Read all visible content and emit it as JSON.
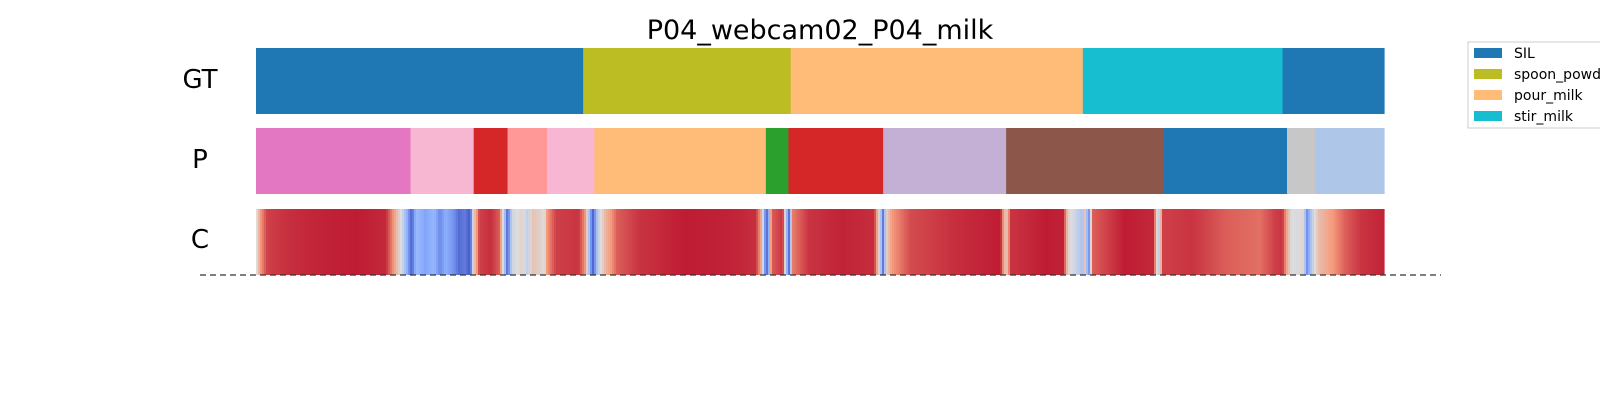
{
  "chart_data": {
    "type": "segmentation",
    "title": "P04_webcam02_P04_milk",
    "x_range": [
      0,
      1
    ],
    "rows": [
      {
        "label": "GT",
        "segments": [
          {
            "start": 0.0,
            "end": 0.29,
            "color": "#1f77b4",
            "class": "SIL"
          },
          {
            "start": 0.29,
            "end": 0.474,
            "color": "#bcbd22",
            "class": "spoon_powd"
          },
          {
            "start": 0.474,
            "end": 0.733,
            "color": "#ffbb78",
            "class": "pour_milk"
          },
          {
            "start": 0.733,
            "end": 0.91,
            "color": "#17becf",
            "class": "stir_milk"
          },
          {
            "start": 0.91,
            "end": 1.0,
            "color": "#1f77b4",
            "class": "SIL"
          }
        ]
      },
      {
        "label": "P",
        "segments": [
          {
            "start": 0.0,
            "end": 0.137,
            "color": "#e377c2"
          },
          {
            "start": 0.137,
            "end": 0.193,
            "color": "#f7b6d2"
          },
          {
            "start": 0.193,
            "end": 0.223,
            "color": "#d62728"
          },
          {
            "start": 0.223,
            "end": 0.258,
            "color": "#ff9896"
          },
          {
            "start": 0.258,
            "end": 0.3,
            "color": "#f7b6d2"
          },
          {
            "start": 0.3,
            "end": 0.452,
            "color": "#ffbb78"
          },
          {
            "start": 0.452,
            "end": 0.472,
            "color": "#2ca02c"
          },
          {
            "start": 0.472,
            "end": 0.556,
            "color": "#d62728"
          },
          {
            "start": 0.556,
            "end": 0.665,
            "color": "#c5b0d5"
          },
          {
            "start": 0.665,
            "end": 0.805,
            "color": "#8c564b"
          },
          {
            "start": 0.805,
            "end": 0.914,
            "color": "#1f77b4"
          },
          {
            "start": 0.914,
            "end": 0.939,
            "color": "#c7c7c7"
          },
          {
            "start": 0.939,
            "end": 1.0,
            "color": "#aec7e8"
          }
        ]
      },
      {
        "label": "C",
        "colormap": "coolwarm",
        "confidence_points": [
          [
            0.0,
            0.45
          ],
          [
            0.004,
            0.75
          ],
          [
            0.01,
            0.9
          ],
          [
            0.03,
            0.93
          ],
          [
            0.06,
            0.95
          ],
          [
            0.09,
            0.96
          ],
          [
            0.115,
            0.94
          ],
          [
            0.122,
            0.75
          ],
          [
            0.127,
            0.55
          ],
          [
            0.131,
            0.4
          ],
          [
            0.134,
            0.25
          ],
          [
            0.138,
            0.05
          ],
          [
            0.142,
            0.3
          ],
          [
            0.15,
            0.22
          ],
          [
            0.158,
            0.28
          ],
          [
            0.163,
            0.15
          ],
          [
            0.168,
            0.25
          ],
          [
            0.175,
            0.18
          ],
          [
            0.18,
            0.08
          ],
          [
            0.185,
            0.12
          ],
          [
            0.19,
            0.03
          ],
          [
            0.193,
            0.55
          ],
          [
            0.198,
            0.9
          ],
          [
            0.208,
            0.93
          ],
          [
            0.216,
            0.85
          ],
          [
            0.22,
            0.4
          ],
          [
            0.223,
            0.05
          ],
          [
            0.227,
            0.45
          ],
          [
            0.236,
            0.55
          ],
          [
            0.241,
            0.4
          ],
          [
            0.245,
            0.6
          ],
          [
            0.252,
            0.55
          ],
          [
            0.256,
            0.5
          ],
          [
            0.258,
            0.75
          ],
          [
            0.266,
            0.9
          ],
          [
            0.286,
            0.92
          ],
          [
            0.292,
            0.75
          ],
          [
            0.296,
            0.25
          ],
          [
            0.299,
            0.05
          ],
          [
            0.303,
            0.4
          ],
          [
            0.31,
            0.65
          ],
          [
            0.32,
            0.85
          ],
          [
            0.34,
            0.92
          ],
          [
            0.38,
            0.96
          ],
          [
            0.42,
            0.95
          ],
          [
            0.443,
            0.93
          ],
          [
            0.448,
            0.7
          ],
          [
            0.451,
            0.2
          ],
          [
            0.454,
            0.05
          ],
          [
            0.457,
            0.85
          ],
          [
            0.467,
            0.92
          ],
          [
            0.47,
            0.35
          ],
          [
            0.473,
            0.05
          ],
          [
            0.476,
            0.8
          ],
          [
            0.49,
            0.92
          ],
          [
            0.52,
            0.95
          ],
          [
            0.548,
            0.93
          ],
          [
            0.552,
            0.6
          ],
          [
            0.556,
            0.1
          ],
          [
            0.559,
            0.55
          ],
          [
            0.564,
            0.75
          ],
          [
            0.58,
            0.88
          ],
          [
            0.62,
            0.93
          ],
          [
            0.66,
            0.96
          ],
          [
            0.665,
            0.55
          ],
          [
            0.669,
            0.92
          ],
          [
            0.7,
            0.96
          ],
          [
            0.716,
            0.95
          ],
          [
            0.72,
            0.55
          ],
          [
            0.726,
            0.45
          ],
          [
            0.733,
            0.35
          ],
          [
            0.735,
            0.6
          ],
          [
            0.738,
            0.1
          ],
          [
            0.742,
            0.85
          ],
          [
            0.77,
            0.96
          ],
          [
            0.796,
            0.94
          ],
          [
            0.8,
            0.35
          ],
          [
            0.804,
            0.9
          ],
          [
            0.83,
            0.92
          ],
          [
            0.86,
            0.85
          ],
          [
            0.89,
            0.82
          ],
          [
            0.903,
            0.9
          ],
          [
            0.91,
            0.92
          ],
          [
            0.914,
            0.7
          ],
          [
            0.918,
            0.5
          ],
          [
            0.924,
            0.48
          ],
          [
            0.928,
            0.55
          ],
          [
            0.932,
            0.15
          ],
          [
            0.936,
            0.4
          ],
          [
            0.942,
            0.62
          ],
          [
            0.95,
            0.7
          ],
          [
            0.958,
            0.78
          ],
          [
            0.966,
            0.85
          ],
          [
            0.98,
            0.92
          ],
          [
            1.0,
            0.95
          ]
        ]
      }
    ],
    "baseline": {
      "style": "dashed",
      "color": "#333333"
    },
    "legend": {
      "placement": "top-right",
      "entries": [
        {
          "label": "SIL",
          "color": "#1f77b4"
        },
        {
          "label": "spoon_powd",
          "color": "#bcbd22"
        },
        {
          "label": "pour_milk",
          "color": "#ffbb78"
        },
        {
          "label": "stir_milk",
          "color": "#17becf"
        }
      ]
    }
  }
}
